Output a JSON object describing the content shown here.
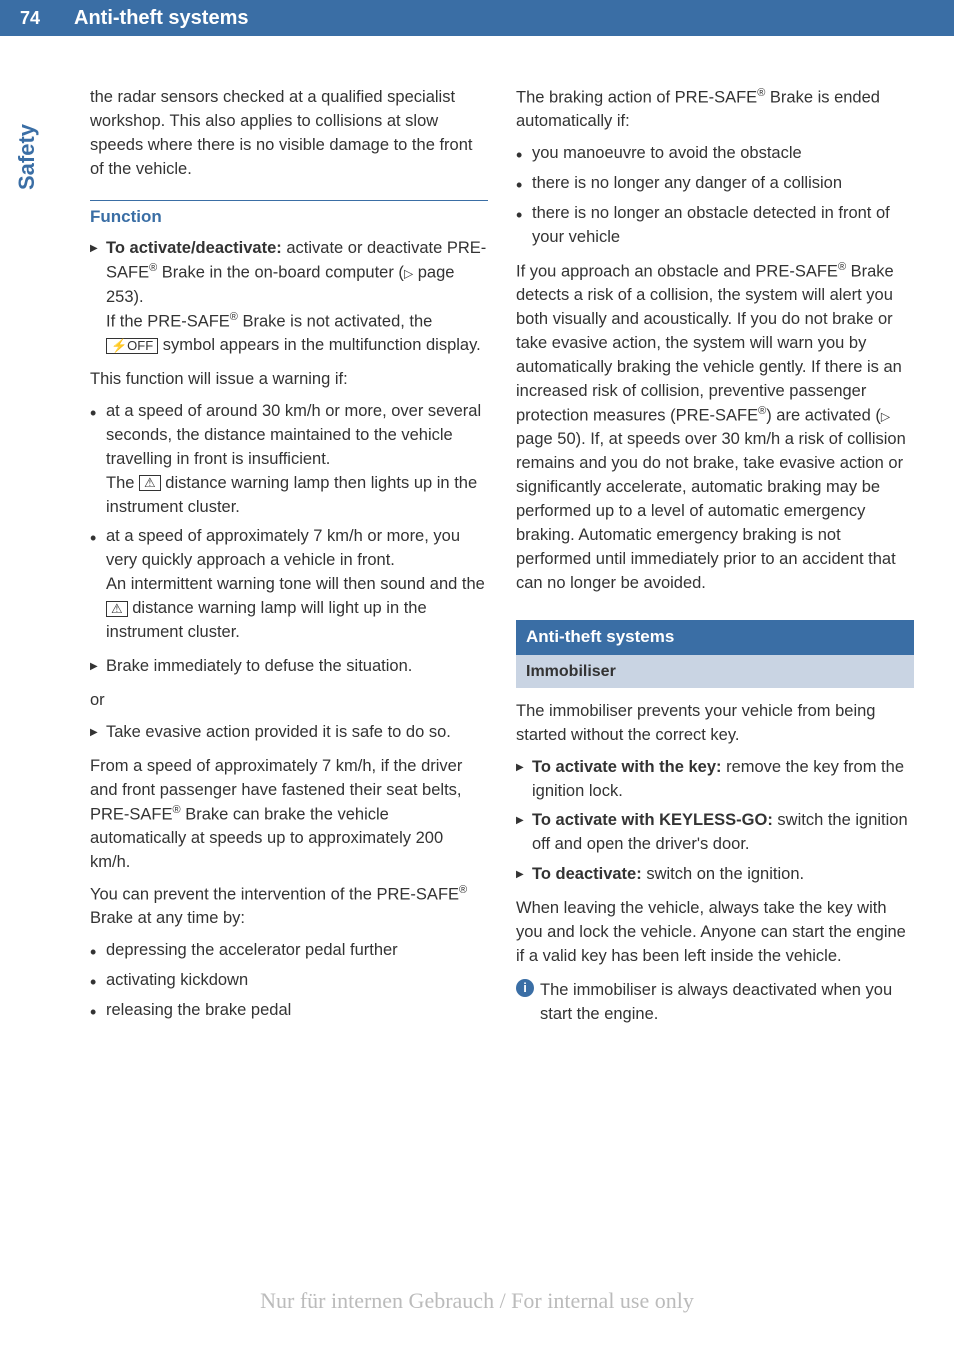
{
  "page": {
    "number": "74",
    "header_title": "Anti-theft systems",
    "side_tab": "Safety",
    "watermark": "Nur für internen Gebrauch / For internal use only"
  },
  "left": {
    "intro": "the radar sensors checked at a qualified specialist workshop. This also applies to collisions at slow speeds where there is no visible damage to the front of the vehicle.",
    "function_heading": "Function",
    "activate_label": "To activate/deactivate:",
    "activate_text": " activate or deactivate PRE-SAFE",
    "activate_text2": " Brake in the on-board computer (",
    "page_ref1": " page 253).",
    "if_not_activated": "If the PRE-SAFE",
    "if_not_activated2": " Brake is not activated, the ",
    "symbol_text": " symbol appears in the multifunction display.",
    "warning_intro": "This function will issue a warning if:",
    "bullet1a": "at a speed of around 30 km/h or more, over several seconds, the distance maintained to the vehicle travelling in front is insufficient.",
    "bullet1b_pre": "The ",
    "bullet1b_post": " distance warning lamp then lights up in the instrument cluster.",
    "bullet2a": "at a speed of approximately 7 km/h or more, you very quickly approach a vehicle in front.",
    "bullet2b_pre": "An intermittent warning tone will then sound and the ",
    "bullet2b_post": " distance warning lamp will light up in the instrument cluster.",
    "brake_immediately": "Brake immediately to defuse the situation.",
    "or": "or",
    "take_evasive": "Take evasive action provided it is safe to do so.",
    "from_speed1": "From a speed of approximately 7 km/h, if the driver and front passenger have fastened their seat belts, PRE-SAFE",
    "from_speed2": " Brake can brake the vehicle automatically at speeds up to approximately 200 km/h.",
    "prevent1": "You can prevent the intervention of the PRE-SAFE",
    "prevent2": " Brake at any time by:",
    "prevent_b1": "depressing the accelerator pedal further",
    "prevent_b2": "activating kickdown",
    "prevent_b3": "releasing the brake pedal",
    "reg_sup": "®",
    "tri": "▷",
    "warn_icon": "⚠",
    "off_icon": "⚡OFF"
  },
  "right": {
    "braking1": "The braking action of PRE-SAFE",
    "braking2": " Brake is ended automatically if:",
    "b1": "you manoeuvre to avoid the obstacle",
    "b2": "there is no longer any danger of a collision",
    "b3": "there is no longer an obstacle detected in front of your vehicle",
    "approach1": "If you approach an obstacle and PRE-SAFE",
    "approach2": " Brake detects a risk of a collision, the system will alert you both visually and acoustically. If you do not brake or take evasive action, the system will warn you by automatically braking the vehicle gently. If there is an increased risk of collision, preventive passenger protection measures (PRE-SAFE",
    "approach3": ") are activated (",
    "page_ref2": " page 50). If, at speeds over 30 km/h a risk of collision remains and you do not brake, take evasive action or significantly accelerate, automatic braking may be performed up to a level of automatic emergency braking. Automatic emergency braking is not performed until immediately prior to an accident that can no longer be avoided.",
    "section_title": "Anti-theft systems",
    "sub_title": "Immobiliser",
    "immob_intro": "The immobiliser prevents your vehicle from being started without the correct key.",
    "act_key_label": "To activate with the key:",
    "act_key_text": " remove the key from the ignition lock.",
    "act_keyless_label": "To activate with KEYLESS-GO:",
    "act_keyless_text": " switch the ignition off and open the driver's door.",
    "deact_label": "To deactivate:",
    "deact_text": " switch on the ignition.",
    "leaving": "When leaving the vehicle, always take the key with you and lock the vehicle. Anyone can start the engine if a valid key has been left inside the vehicle.",
    "info": "The immobiliser is always deactivated when you start the engine.",
    "info_i": "i"
  }
}
